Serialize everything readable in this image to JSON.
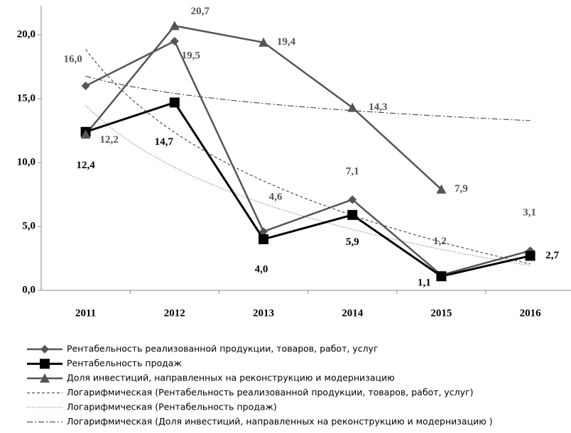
{
  "chart_data": {
    "type": "line",
    "categories": [
      "2011",
      "2012",
      "2013",
      "2014",
      "2015",
      "2016"
    ],
    "ylim": [
      0,
      22
    ],
    "yticks": [
      {
        "value": 0,
        "label": "0,0"
      },
      {
        "value": 5,
        "label": "5,0"
      },
      {
        "value": 10,
        "label": "10,0"
      },
      {
        "value": 15,
        "label": "15,0"
      },
      {
        "value": 20,
        "label": "20,0"
      }
    ],
    "legend": "bottom",
    "series": [
      {
        "name": "Рентабельность реализованной продукции, товаров, работ, услуг",
        "color": "#555555",
        "marker": "diamond",
        "values": [
          16.0,
          19.5,
          4.6,
          7.1,
          1.2,
          3.1
        ],
        "value_labels": [
          "16,0",
          "19,5",
          "4,6",
          "7,1",
          "1,2",
          "3,1"
        ],
        "trendline": {
          "name": "Логарифмическая (Рентабельность реализованной продукции, товаров, работ, услуг)",
          "type": "logarithmic",
          "color": "#333333",
          "dash": "dashed"
        }
      },
      {
        "name": "Рентабельность продаж",
        "color": "#000000",
        "marker": "square",
        "values": [
          12.4,
          14.7,
          4.0,
          5.9,
          1.1,
          2.7
        ],
        "value_labels": [
          "12,4",
          "14,7",
          "4,0",
          "5,9",
          "1,1",
          "2,7"
        ],
        "trendline": {
          "name": "Логарифмическая (Рентабельность продаж)",
          "type": "logarithmic",
          "color": "#777777",
          "dash": "dotted"
        }
      },
      {
        "name": "Доля инвестиций, направленных на реконструкцию и модернизацию",
        "color": "#555555",
        "marker": "triangle",
        "values": [
          12.2,
          20.7,
          19.4,
          14.3,
          7.9,
          null
        ],
        "value_labels": [
          "12,2",
          "20,7",
          "19,4",
          "14,3",
          "7,9",
          null
        ],
        "trendline": {
          "name": "Логарифмическая (Доля инвестиций, направленных на реконструкцию и модернизацию )",
          "type": "logarithmic",
          "color": "#333333",
          "dash": "dashdot"
        }
      }
    ]
  }
}
